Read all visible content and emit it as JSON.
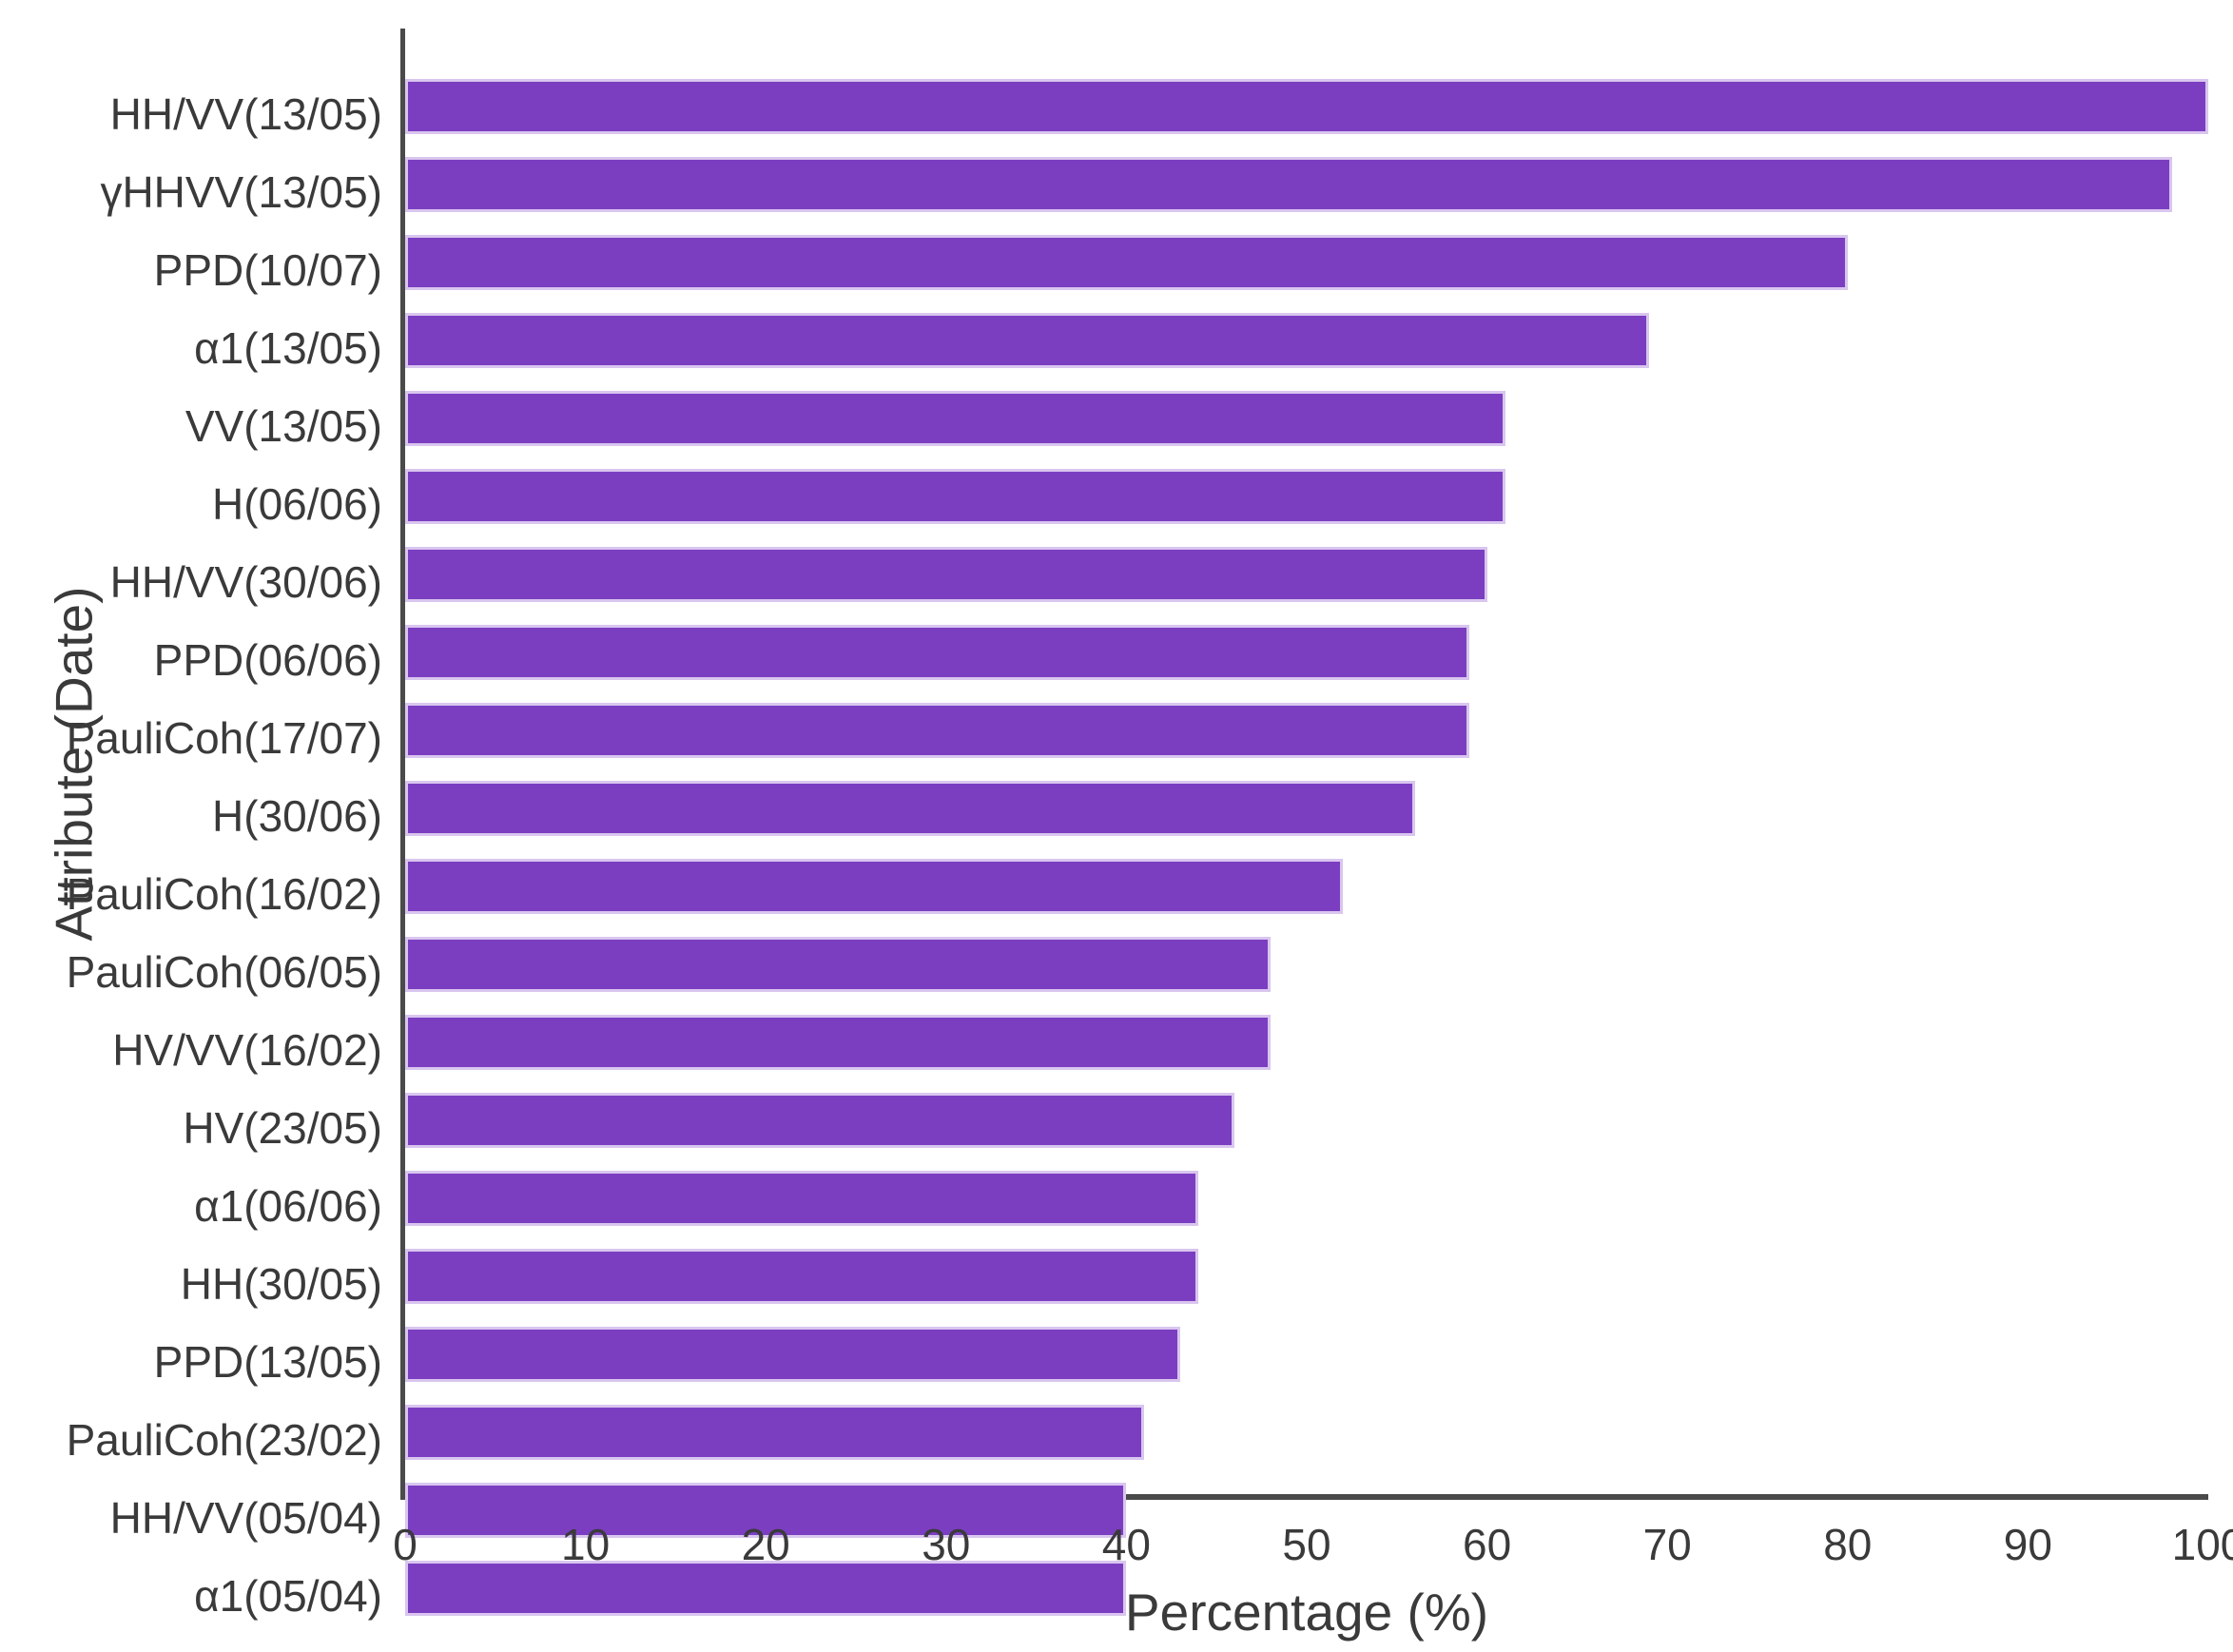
{
  "chart_data": {
    "type": "bar",
    "orientation": "horizontal",
    "title": "",
    "xlabel": "Percentage (%)",
    "ylabel": "Attribute (Date)",
    "xlim": [
      0,
      100
    ],
    "x_ticks": [
      0,
      10,
      20,
      30,
      40,
      50,
      60,
      70,
      80,
      90,
      100
    ],
    "grid": false,
    "legend": false,
    "categories": [
      "HH/VV(13/05)",
      "γHHVV(13/05)",
      "PPD(10/07)",
      "α1(13/05)",
      "VV(13/05)",
      "H(06/06)",
      "HH/VV(30/06)",
      "PPD(06/06)",
      "PauliCoh(17/07)",
      "H(30/06)",
      "PauliCoh(16/02)",
      "PauliCoh(06/05)",
      "HV/VV(16/02)",
      "HV(23/05)",
      "α1(06/06)",
      "HH(30/05)",
      "PPD(13/05)",
      "PauliCoh(23/02)",
      "HH/VV(05/04)",
      "α1(05/04)"
    ],
    "values": [
      100,
      98,
      80,
      69,
      61,
      61,
      60,
      59,
      59,
      56,
      52,
      48,
      48,
      46,
      44,
      44,
      43,
      41,
      40,
      40
    ],
    "colors": {
      "bar_fill": "#7b3ec1",
      "bar_edge": "#d9c6ef",
      "axis": "#4a4a4a",
      "text": "#3a3a3a",
      "background": "#ffffff"
    }
  }
}
